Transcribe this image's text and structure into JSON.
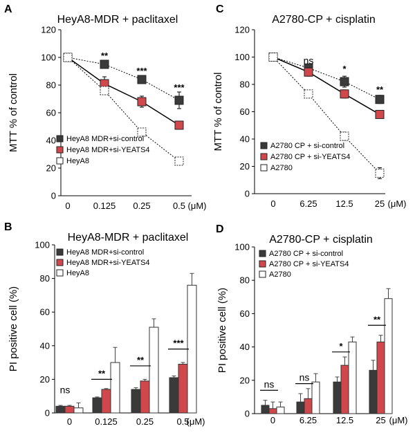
{
  "figure": {
    "panel_letters": [
      "A",
      "B",
      "C",
      "D"
    ]
  },
  "colors": {
    "si_control": "#3a3a3a",
    "si_yeats4": "#d0484c",
    "parental": "#ffffff",
    "stroke": "#404040"
  },
  "chart_data": [
    {
      "id": "A",
      "type": "line",
      "title": "HeyA8-MDR + paclitaxel",
      "ylabel": "MTT % of control",
      "xlabel": "",
      "categories": [
        "0",
        "0.125",
        "0.25",
        "0.5"
      ],
      "unit": "(μM)",
      "ylim": [
        0,
        120
      ],
      "yticks": [
        0,
        20,
        40,
        60,
        80,
        100,
        120
      ],
      "legend": "bottom-left",
      "series": [
        {
          "name": "HeyA8 MDR+si-control",
          "style": "si_control",
          "values": [
            100,
            95,
            84,
            69
          ],
          "errors": [
            0,
            3,
            3,
            6
          ]
        },
        {
          "name": "HeyA8 MDR+si-YEATS4",
          "style": "si_yeats4",
          "values": [
            100,
            81,
            68,
            51
          ],
          "errors": [
            0,
            5,
            4,
            2
          ]
        },
        {
          "name": "HeyA8",
          "style": "parental",
          "values": [
            100,
            76,
            46,
            25
          ],
          "errors": [
            0,
            2,
            2,
            2
          ]
        }
      ],
      "annotations": [
        {
          "index": 1,
          "text": "**",
          "value": 99
        },
        {
          "index": 2,
          "text": "***",
          "value": 88
        },
        {
          "index": 3,
          "text": "***",
          "value": 76
        }
      ]
    },
    {
      "id": "C",
      "type": "line",
      "title": "A2780-CP + cisplatin",
      "ylabel": "MTT % of control",
      "xlabel": "",
      "categories": [
        "0",
        "6.25",
        "12.5",
        "25"
      ],
      "unit": "(μM)",
      "ylim": [
        0,
        120
      ],
      "yticks": [
        0,
        20,
        40,
        60,
        80,
        100,
        120
      ],
      "legend": "bottom-left",
      "series": [
        {
          "name": "A2780 CP + si-control",
          "style": "si_control",
          "values": [
            100,
            92,
            82,
            69
          ],
          "errors": [
            0,
            2,
            4,
            3
          ]
        },
        {
          "name": "A2780 CP + si-YEATS4",
          "style": "si_yeats4",
          "values": [
            100,
            89,
            73,
            58
          ],
          "errors": [
            0,
            3,
            3,
            2
          ]
        },
        {
          "name": "A2780",
          "style": "parental",
          "values": [
            100,
            73,
            42,
            15
          ],
          "errors": [
            3,
            2,
            3,
            4
          ]
        }
      ],
      "annotations": [
        {
          "index": 1,
          "text": "ns",
          "value": 95
        },
        {
          "index": 2,
          "text": "*",
          "value": 89
        },
        {
          "index": 3,
          "text": "**",
          "value": 74
        }
      ]
    },
    {
      "id": "B",
      "type": "bar",
      "title": "HeyA8-MDR + paclitaxel",
      "ylabel": "PI positive cell (%)",
      "xlabel": "",
      "categories": [
        "0",
        "0.125",
        "0.25",
        "0.5"
      ],
      "unit": "(μM)",
      "ylim": [
        0,
        100
      ],
      "yticks": [
        0,
        20,
        40,
        60,
        80,
        100
      ],
      "legend": "top-left",
      "series": [
        {
          "name": "HeyA8 MDR+si-control",
          "style": "si_control",
          "values": [
            4,
            9,
            14,
            21
          ],
          "errors": [
            0.5,
            0.5,
            1,
            1
          ]
        },
        {
          "name": "HeyA8 MDR+si-YEATS4",
          "style": "si_yeats4",
          "values": [
            4,
            14,
            19,
            29
          ],
          "errors": [
            0.5,
            0.5,
            1,
            1
          ]
        },
        {
          "name": "HeyA8",
          "style": "parental",
          "values": [
            3,
            30,
            51,
            76
          ],
          "errors": [
            3,
            9,
            5,
            7
          ]
        }
      ],
      "annotations": [
        {
          "index": 0,
          "text": "ns",
          "value": 10,
          "bracket": false
        },
        {
          "index": 1,
          "text": "**",
          "value": 20,
          "bracket": true
        },
        {
          "index": 2,
          "text": "**",
          "value": 28,
          "bracket": true
        },
        {
          "index": 3,
          "text": "***",
          "value": 38,
          "bracket": true
        }
      ]
    },
    {
      "id": "D",
      "type": "bar",
      "title": "A2780-CP + cisplatin",
      "ylabel": "PI positive cell (%)",
      "xlabel": "",
      "categories": [
        "0",
        "6.25",
        "12.5",
        "25"
      ],
      "unit": "(μM)",
      "ylim": [
        0,
        100
      ],
      "yticks": [
        0,
        20,
        40,
        60,
        80,
        100
      ],
      "legend": "top-left",
      "series": [
        {
          "name": "A2780 CP + si-control",
          "style": "si_control",
          "values": [
            5,
            7,
            19,
            26
          ],
          "errors": [
            3,
            5,
            3,
            6
          ]
        },
        {
          "name": "A2780 CP + si-YEATS4",
          "style": "si_yeats4",
          "values": [
            3,
            9,
            29,
            43
          ],
          "errors": [
            4,
            6,
            5,
            4
          ]
        },
        {
          "name": "A2780",
          "style": "parental",
          "values": [
            4,
            19,
            43,
            69
          ],
          "errors": [
            3,
            5,
            3,
            6
          ]
        }
      ],
      "annotations": [
        {
          "index": 0,
          "text": "ns",
          "value": 14,
          "bracket": true
        },
        {
          "index": 1,
          "text": "ns",
          "value": 18,
          "bracket": true
        },
        {
          "index": 2,
          "text": "*",
          "value": 37,
          "bracket": true
        },
        {
          "index": 3,
          "text": "**",
          "value": 53,
          "bracket": true
        }
      ]
    }
  ]
}
